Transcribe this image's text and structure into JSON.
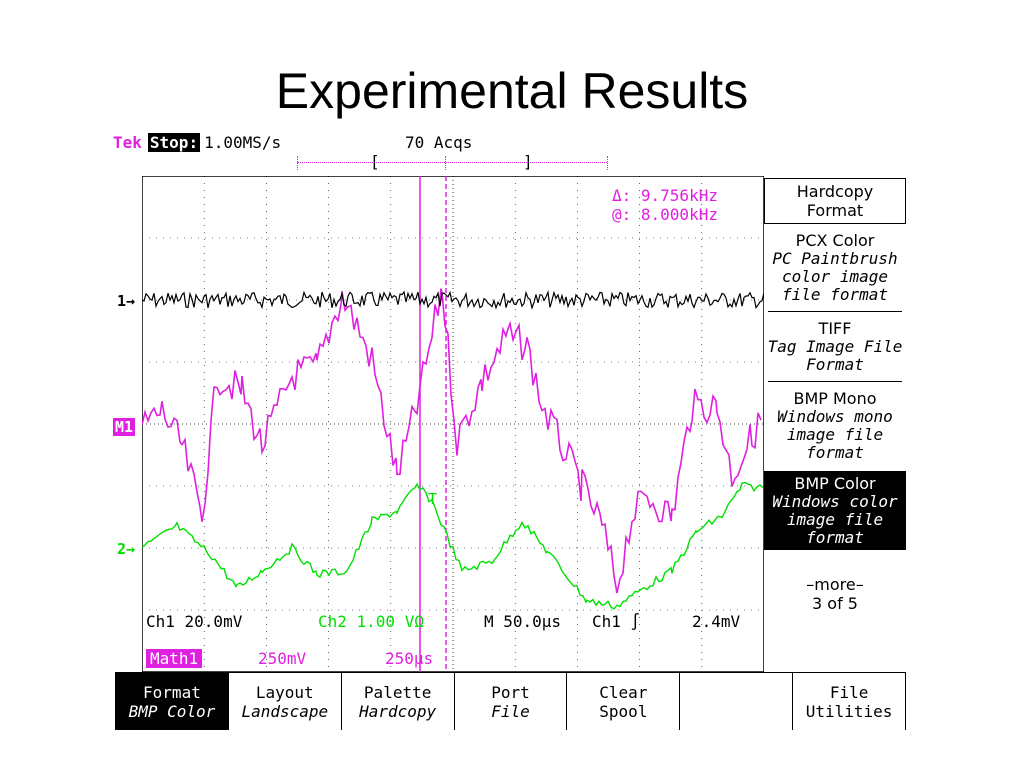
{
  "slide": {
    "title": "Experimental Results"
  },
  "scope": {
    "brand": "Tek",
    "run_state": "Stop:",
    "sample_rate": "1.00MS/s",
    "acquisitions": "70 Acqs",
    "cursor": {
      "delta": "Δ: 9.756kHz",
      "at": "@: 8.000kHz"
    },
    "channel_markers": {
      "ch1": "1→",
      "math": "M1",
      "ch2": "2→"
    },
    "trigger_marker": "T",
    "status": {
      "ch1": "Ch1  20.0mV",
      "ch2": "Ch2   1.00 VΩ",
      "timebase": "M 50.0µs",
      "trigger": "Ch1 ∫",
      "trigger_level": "2.4mV",
      "math_label": "Math1",
      "math_scale": "250mV",
      "math_time": "250µs"
    },
    "colors": {
      "ch1": "#000000",
      "ch2": "#00e000",
      "math": "#e020e0",
      "grid": "#000000"
    }
  },
  "side_menu": {
    "items": [
      {
        "title": "Hardcopy",
        "desc": "Format"
      },
      {
        "title": "PCX Color",
        "desc": "PC Paintbrush color image file format"
      },
      {
        "title": "TIFF",
        "desc": "Tag Image File Format"
      },
      {
        "title": "BMP Mono",
        "desc": "Windows mono image file format"
      },
      {
        "title": "BMP Color",
        "desc": "Windows color image file format"
      },
      {
        "title": "–more–",
        "desc": "3 of 5"
      }
    ]
  },
  "bottom_menu": {
    "items": [
      {
        "label": "Format",
        "sub": "BMP Color"
      },
      {
        "label": "Layout",
        "sub": "Landscape"
      },
      {
        "label": "Palette",
        "sub": "Hardcopy"
      },
      {
        "label": "Port",
        "sub": "File"
      },
      {
        "label": "Clear",
        "sub": "Spool"
      },
      {
        "label": "",
        "sub": ""
      },
      {
        "label": "File",
        "sub": "Utilities"
      }
    ]
  }
}
